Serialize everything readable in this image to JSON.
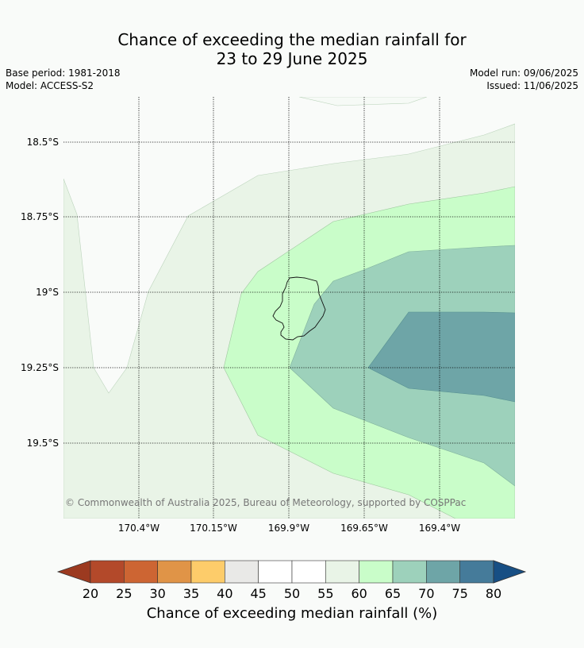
{
  "title_line1": "Chance of exceeding the median rainfall for",
  "title_line2": "23 to 29 June 2025",
  "base_period": "Base period: 1981-2018",
  "model": "Model: ACCESS-S2",
  "model_run": "Model run: 09/06/2025",
  "issued": "Issued: 11/06/2025",
  "copyright": "© Commonwealth of Australia 2025, Bureau of Meteorology, supported by COSPPac",
  "lat_labels": [
    "18.5°S",
    "18.75°S",
    "19°S",
    "19.25°S",
    "19.5°S"
  ],
  "lon_labels": [
    "170.4°W",
    "170.15°W",
    "169.9°W",
    "169.65°W",
    "169.4°W"
  ],
  "colorbar": {
    "ticks": [
      "20",
      "25",
      "30",
      "35",
      "40",
      "45",
      "50",
      "55",
      "60",
      "65",
      "70",
      "75",
      "80"
    ],
    "colors": [
      "#b3492a",
      "#cd6533",
      "#e09447",
      "#fdcc6a",
      "#e9e9e7",
      "#ffffff",
      "#ffffff",
      "#e9f4e7",
      "#c9fdc9",
      "#9dd1bb",
      "#6ea5a7",
      "#457b9a"
    ],
    "under_color": "#9c3a20",
    "over_color": "#174f84",
    "label": "Chance of exceeding median rainfall (%)"
  },
  "map_colors": {
    "band_55_60": "#e9f4e7",
    "band_60_65": "#c9fdc9",
    "band_65_70": "#9dd1bb",
    "band_70_75": "#6ea5a7"
  }
}
